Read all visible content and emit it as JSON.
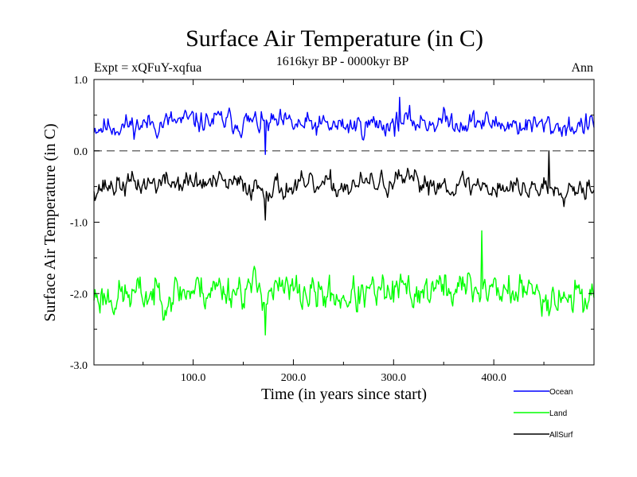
{
  "chart_data": {
    "type": "line",
    "title": "Surface Air Temperature (in C)",
    "subtitle": "1616kyr BP - 0000kyr BP",
    "experiment_label": "Expt = xQFuY-xqfua",
    "season_label": "Ann",
    "xlabel": "Time (in years since start)",
    "ylabel": "Surface Air Temperature (in C)",
    "xlim": [
      1,
      500
    ],
    "ylim": [
      -3.0,
      1.0
    ],
    "x_ticks": [
      100,
      200,
      300,
      400
    ],
    "x_tick_labels": [
      "100.0",
      "200.0",
      "300.0",
      "400.0"
    ],
    "y_ticks": [
      1.0,
      0.0,
      -1.0,
      -2.0,
      -3.0
    ],
    "y_tick_labels": [
      "1.0",
      "0.0",
      "-1.0",
      "-2.0",
      "-3.0"
    ],
    "zero_line": 0.0,
    "series": [
      {
        "name": "Ocean",
        "color": "#0000ff",
        "mean": 0.38,
        "amplitude": 0.14,
        "seed": 11,
        "min_point": [
          172,
          -0.05
        ],
        "max_point": [
          306,
          0.75
        ]
      },
      {
        "name": "Land",
        "color": "#00ff00",
        "mean": -1.98,
        "amplitude": 0.22,
        "seed": 23,
        "min_point": [
          172,
          -2.58
        ],
        "max_point": [
          388,
          -1.12
        ]
      },
      {
        "name": "AllSurf",
        "color": "#000000",
        "mean": -0.48,
        "amplitude": 0.14,
        "seed": 37,
        "min_point": [
          172,
          -0.97
        ],
        "max_point": [
          455,
          0.0
        ]
      }
    ],
    "legend": {
      "position": "bottom-right",
      "entries": [
        "Ocean",
        "Land",
        "AllSurf"
      ]
    }
  }
}
